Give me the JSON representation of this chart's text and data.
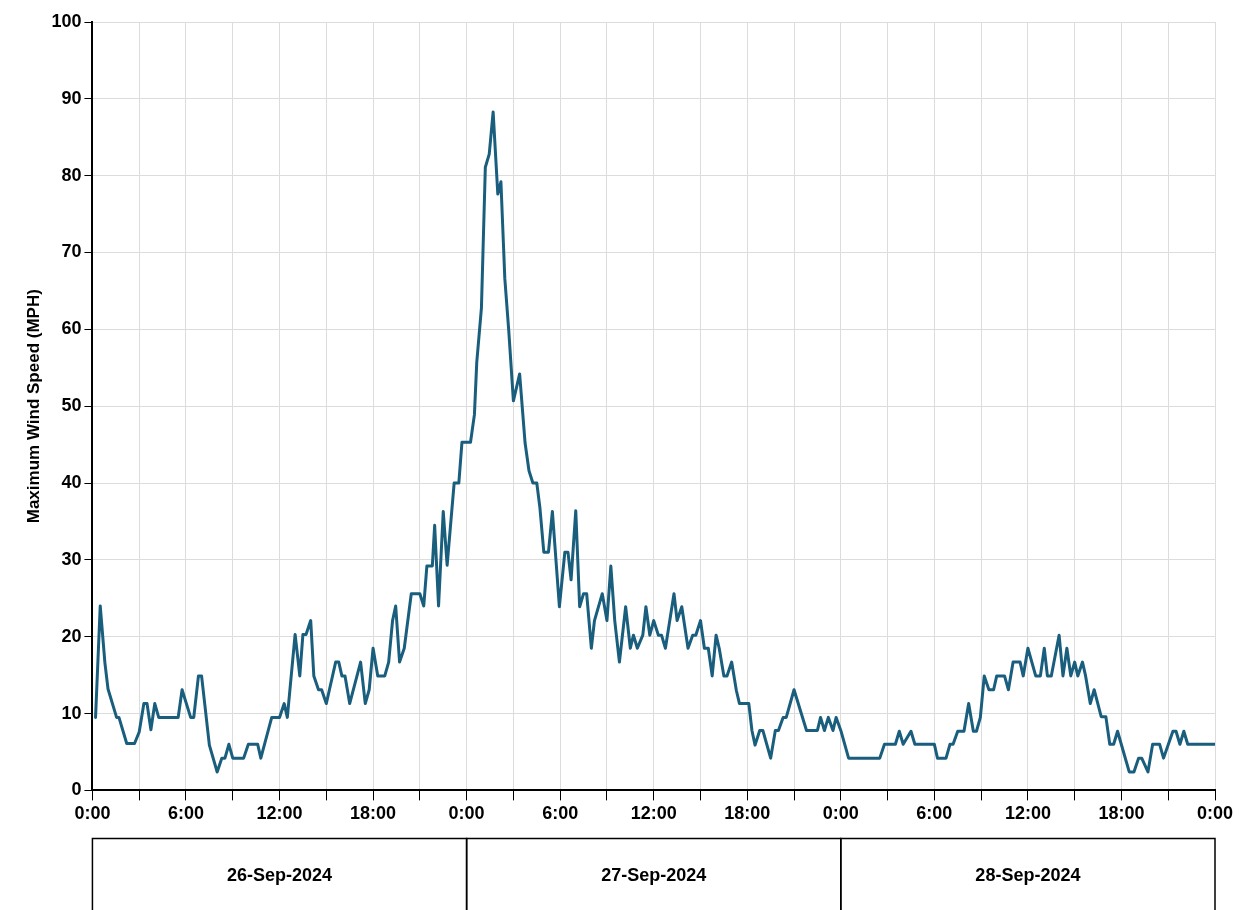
{
  "chart_data": {
    "type": "line",
    "ylabel": "Maximum Wind Speed (MPH)",
    "annotations": [
      "26-Sep-2024",
      "27-Sep-2024",
      "28-Sep-2024"
    ],
    "xlim": [
      "2024-09-26T00:00",
      "2024-09-29T00:00"
    ],
    "xticks": [
      {
        "value": "2024-09-26T00:00",
        "label": "0:00"
      },
      {
        "value": "2024-09-26T03:00",
        "label": null
      },
      {
        "value": "2024-09-26T06:00",
        "label": "6:00"
      },
      {
        "value": "2024-09-26T09:00",
        "label": null
      },
      {
        "value": "2024-09-26T12:00",
        "label": "12:00"
      },
      {
        "value": "2024-09-26T15:00",
        "label": null
      },
      {
        "value": "2024-09-26T18:00",
        "label": "18:00"
      },
      {
        "value": "2024-09-26T21:00",
        "label": null
      },
      {
        "value": "2024-09-27T00:00",
        "label": "0:00"
      },
      {
        "value": "2024-09-27T03:00",
        "label": null
      },
      {
        "value": "2024-09-27T06:00",
        "label": "6:00"
      },
      {
        "value": "2024-09-27T09:00",
        "label": null
      },
      {
        "value": "2024-09-27T12:00",
        "label": "12:00"
      },
      {
        "value": "2024-09-27T15:00",
        "label": null
      },
      {
        "value": "2024-09-27T18:00",
        "label": "18:00"
      },
      {
        "value": "2024-09-27T21:00",
        "label": null
      },
      {
        "value": "2024-09-28T00:00",
        "label": "0:00"
      },
      {
        "value": "2024-09-28T03:00",
        "label": null
      },
      {
        "value": "2024-09-28T06:00",
        "label": "6:00"
      },
      {
        "value": "2024-09-28T09:00",
        "label": null
      },
      {
        "value": "2024-09-28T12:00",
        "label": "12:00"
      },
      {
        "value": "2024-09-28T15:00",
        "label": null
      },
      {
        "value": "2024-09-28T18:00",
        "label": "18:00"
      },
      {
        "value": "2024-09-28T21:00",
        "label": null
      },
      {
        "value": "2024-09-29T00:00",
        "label": "0:00"
      }
    ],
    "ylim": [
      0,
      100
    ],
    "yticks": [
      0,
      10,
      20,
      30,
      40,
      50,
      60,
      70,
      80,
      90,
      100
    ],
    "grid": true,
    "color": "#1a5e7e",
    "x": [
      "2024-09-26T00:12",
      "2024-09-26T00:30",
      "2024-09-26T00:48",
      "2024-09-26T01:00",
      "2024-09-26T01:33",
      "2024-09-26T01:42",
      "2024-09-26T02:12",
      "2024-09-26T02:42",
      "2024-09-26T03:00",
      "2024-09-26T03:18",
      "2024-09-26T03:30",
      "2024-09-26T03:45",
      "2024-09-26T04:00",
      "2024-09-26T04:15",
      "2024-09-26T05:30",
      "2024-09-26T05:45",
      "2024-09-26T06:18",
      "2024-09-26T06:30",
      "2024-09-26T06:48",
      "2024-09-26T07:00",
      "2024-09-26T07:30",
      "2024-09-26T08:00",
      "2024-09-26T08:18",
      "2024-09-26T08:30",
      "2024-09-26T08:45",
      "2024-09-26T09:00",
      "2024-09-26T09:42",
      "2024-09-26T10:00",
      "2024-09-26T10:36",
      "2024-09-26T10:48",
      "2024-09-26T11:30",
      "2024-09-26T12:00",
      "2024-09-26T12:18",
      "2024-09-26T12:30",
      "2024-09-26T13:00",
      "2024-09-26T13:18",
      "2024-09-26T13:30",
      "2024-09-26T13:42",
      "2024-09-26T14:00",
      "2024-09-26T14:12",
      "2024-09-26T14:30",
      "2024-09-26T14:42",
      "2024-09-26T15:00",
      "2024-09-26T15:12",
      "2024-09-26T15:36",
      "2024-09-26T15:48",
      "2024-09-26T16:00",
      "2024-09-26T16:12",
      "2024-09-26T16:30",
      "2024-09-26T17:12",
      "2024-09-26T17:30",
      "2024-09-26T17:45",
      "2024-09-26T18:00",
      "2024-09-26T18:18",
      "2024-09-26T18:45",
      "2024-09-26T19:00",
      "2024-09-26T19:15",
      "2024-09-26T19:27",
      "2024-09-26T19:42",
      "2024-09-26T20:00",
      "2024-09-26T20:27",
      "2024-09-26T21:00",
      "2024-09-26T21:15",
      "2024-09-26T21:27",
      "2024-09-26T21:48",
      "2024-09-26T21:57",
      "2024-09-26T22:12",
      "2024-09-26T22:30",
      "2024-09-26T22:45",
      "2024-09-26T23:12",
      "2024-09-26T23:30",
      "2024-09-26T23:42",
      "2024-09-27T00:15",
      "2024-09-27T00:30",
      "2024-09-27T00:39",
      "2024-09-27T00:57",
      "2024-09-27T01:12",
      "2024-09-27T01:27",
      "2024-09-27T01:42",
      "2024-09-27T02:00",
      "2024-09-27T02:12",
      "2024-09-27T02:27",
      "2024-09-27T02:42",
      "2024-09-27T03:00",
      "2024-09-27T03:24",
      "2024-09-27T03:45",
      "2024-09-27T04:00",
      "2024-09-27T04:15",
      "2024-09-27T04:30",
      "2024-09-27T04:42",
      "2024-09-27T04:57",
      "2024-09-27T05:15",
      "2024-09-27T05:30",
      "2024-09-27T05:57",
      "2024-09-27T06:18",
      "2024-09-27T06:30",
      "2024-09-27T06:42",
      "2024-09-27T07:00",
      "2024-09-27T07:15",
      "2024-09-27T07:30",
      "2024-09-27T07:42",
      "2024-09-27T08:00",
      "2024-09-27T08:12",
      "2024-09-27T08:42",
      "2024-09-27T09:00",
      "2024-09-27T09:15",
      "2024-09-27T09:30",
      "2024-09-27T09:48",
      "2024-09-27T10:12",
      "2024-09-27T10:30",
      "2024-09-27T10:42",
      "2024-09-27T10:57",
      "2024-09-27T11:18",
      "2024-09-27T11:30",
      "2024-09-27T11:45",
      "2024-09-27T12:00",
      "2024-09-27T12:18",
      "2024-09-27T12:30",
      "2024-09-27T12:45",
      "2024-09-27T13:18",
      "2024-09-27T13:30",
      "2024-09-27T13:48",
      "2024-09-27T14:12",
      "2024-09-27T14:30",
      "2024-09-27T14:42",
      "2024-09-27T15:00",
      "2024-09-27T15:15",
      "2024-09-27T15:30",
      "2024-09-27T15:45",
      "2024-09-27T16:00",
      "2024-09-27T16:12",
      "2024-09-27T16:30",
      "2024-09-27T16:42",
      "2024-09-27T17:00",
      "2024-09-27T17:18",
      "2024-09-27T17:30",
      "2024-09-27T18:06",
      "2024-09-27T18:18",
      "2024-09-27T18:30",
      "2024-09-27T18:48",
      "2024-09-27T19:00",
      "2024-09-27T19:30",
      "2024-09-27T19:48",
      "2024-09-27T20:00",
      "2024-09-27T20:18",
      "2024-09-27T20:30",
      "2024-09-27T21:00",
      "2024-09-27T21:48",
      "2024-09-27T22:30",
      "2024-09-27T22:42",
      "2024-09-27T22:57",
      "2024-09-27T23:12",
      "2024-09-27T23:30",
      "2024-09-27T23:42",
      "2024-09-28T00:00",
      "2024-09-28T00:30",
      "2024-09-28T02:30",
      "2024-09-28T02:48",
      "2024-09-28T03:30",
      "2024-09-28T03:45",
      "2024-09-28T04:00",
      "2024-09-28T04:30",
      "2024-09-28T04:45",
      "2024-09-28T06:00",
      "2024-09-28T06:12",
      "2024-09-28T06:45",
      "2024-09-28T07:00",
      "2024-09-28T07:12",
      "2024-09-28T07:30",
      "2024-09-28T07:54",
      "2024-09-28T08:12",
      "2024-09-28T08:30",
      "2024-09-28T08:42",
      "2024-09-28T08:57",
      "2024-09-28T09:12",
      "2024-09-28T09:30",
      "2024-09-28T09:48",
      "2024-09-28T10:00",
      "2024-09-28T10:30",
      "2024-09-28T10:45",
      "2024-09-28T11:03",
      "2024-09-28T11:30",
      "2024-09-28T11:42",
      "2024-09-28T12:00",
      "2024-09-28T12:30",
      "2024-09-28T12:48",
      "2024-09-28T13:03",
      "2024-09-28T13:15",
      "2024-09-28T13:30",
      "2024-09-28T14:00",
      "2024-09-28T14:15",
      "2024-09-28T14:30",
      "2024-09-28T14:45",
      "2024-09-28T15:00",
      "2024-09-28T15:12",
      "2024-09-28T15:30",
      "2024-09-28T15:42",
      "2024-09-28T16:00",
      "2024-09-28T16:15",
      "2024-09-28T16:42",
      "2024-09-28T17:00",
      "2024-09-28T17:15",
      "2024-09-28T17:30",
      "2024-09-28T17:45",
      "2024-09-28T18:30",
      "2024-09-28T18:48",
      "2024-09-28T19:06",
      "2024-09-28T19:18",
      "2024-09-28T19:42",
      "2024-09-28T20:00",
      "2024-09-28T20:27",
      "2024-09-28T20:42",
      "2024-09-28T21:18",
      "2024-09-28T21:30",
      "2024-09-28T21:45",
      "2024-09-28T22:00",
      "2024-09-28T22:15",
      "2024-09-29T00:00"
    ],
    "values": [
      9.5,
      24.0,
      16.6,
      13.2,
      9.5,
      9.5,
      6.1,
      6.1,
      7.6,
      11.3,
      11.3,
      7.9,
      11.3,
      9.5,
      9.5,
      13.1,
      9.5,
      9.5,
      14.9,
      14.9,
      5.9,
      2.4,
      4.2,
      4.2,
      6.0,
      4.2,
      4.2,
      6.0,
      6.0,
      4.2,
      9.5,
      9.5,
      11.3,
      9.5,
      20.3,
      14.9,
      20.3,
      20.3,
      22.1,
      14.9,
      13.1,
      13.1,
      11.3,
      13.1,
      16.7,
      16.7,
      14.9,
      14.9,
      11.3,
      16.7,
      11.3,
      13.1,
      18.5,
      14.9,
      14.9,
      16.7,
      22.1,
      24.0,
      16.7,
      18.5,
      25.6,
      25.6,
      24.0,
      29.2,
      29.2,
      34.5,
      24.0,
      36.3,
      29.3,
      40.0,
      40.0,
      45.3,
      45.3,
      48.9,
      55.7,
      62.8,
      81.1,
      82.8,
      88.3,
      77.6,
      79.2,
      66.6,
      59.9,
      50.7,
      54.2,
      45.2,
      41.6,
      40.0,
      40.0,
      36.8,
      31.0,
      31.0,
      36.3,
      23.9,
      31.0,
      31.0,
      27.4,
      36.4,
      23.9,
      25.6,
      25.6,
      18.5,
      22.1,
      25.6,
      22.1,
      29.2,
      22.1,
      16.7,
      23.9,
      18.5,
      20.2,
      18.5,
      20.2,
      23.9,
      20.2,
      22.1,
      20.2,
      20.2,
      18.5,
      25.6,
      22.1,
      23.9,
      18.5,
      20.2,
      20.2,
      22.1,
      18.5,
      18.5,
      14.9,
      20.2,
      18.5,
      14.9,
      14.9,
      16.7,
      13.0,
      11.3,
      11.3,
      7.8,
      5.9,
      7.8,
      7.8,
      4.2,
      7.8,
      7.8,
      9.5,
      9.5,
      13.1,
      7.8,
      7.8,
      9.5,
      7.8,
      9.5,
      7.8,
      9.5,
      7.8,
      4.2,
      4.2,
      6.0,
      6.0,
      7.7,
      6.0,
      7.7,
      6.0,
      6.0,
      4.2,
      4.2,
      6.0,
      6.0,
      7.7,
      7.7,
      11.3,
      7.7,
      7.7,
      9.5,
      14.9,
      13.1,
      13.1,
      14.9,
      14.9,
      13.1,
      16.7,
      16.7,
      14.9,
      18.5,
      14.9,
      14.9,
      18.5,
      14.9,
      14.9,
      20.2,
      14.9,
      18.5,
      14.9,
      16.7,
      14.9,
      16.7,
      14.9,
      11.3,
      13.1,
      9.6,
      9.6,
      6.0,
      6.0,
      7.7,
      2.4,
      2.4,
      4.2,
      4.2,
      2.4,
      6.0,
      6.0,
      4.2,
      7.7,
      7.7,
      6.0,
      7.7,
      6.0,
      6.0
    ]
  }
}
